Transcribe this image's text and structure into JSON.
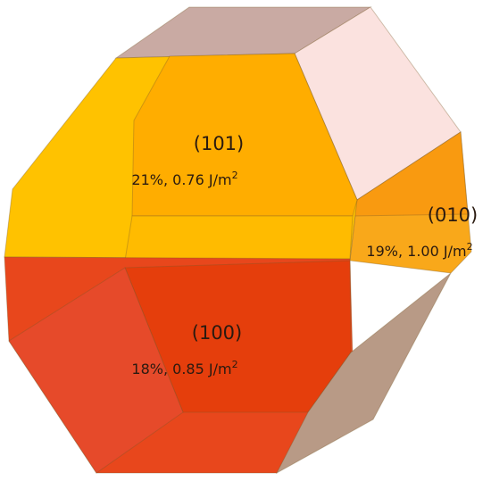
{
  "faces": [
    {
      "miller": "(101)",
      "stats": "21%, 0.76 J/m",
      "sup": "2"
    },
    {
      "miller": "(010)",
      "stats": "19%, 1.00 J/m",
      "sup": "2"
    },
    {
      "miller": "(100)",
      "stats": "18%, 0.85 J/m",
      "sup": "2"
    }
  ]
}
